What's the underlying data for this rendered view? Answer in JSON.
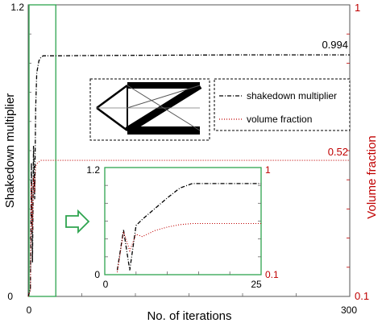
{
  "chart_data": [
    {
      "type": "line",
      "xlabel": "No. of iterations",
      "ylabel_left": "Shakedown multiplier",
      "ylabel_right": "Volume fraction",
      "xlim": [
        0,
        300
      ],
      "ylim_left": [
        0,
        1.2
      ],
      "ylim_right": [
        0.1,
        1
      ],
      "x_tick_labels": [
        "0",
        "300"
      ],
      "y_left_tick_labels": [
        "0",
        "1.2"
      ],
      "y_right_tick_labels": [
        "0.1",
        "1"
      ],
      "grid": false,
      "legend_position": "center",
      "series": [
        {
          "name": "shakedown multiplier",
          "axis": "left",
          "color": "#000000",
          "style": "dash-dot",
          "x": [
            0,
            2,
            3,
            4,
            5,
            6,
            7,
            8,
            10,
            12,
            14,
            16,
            20,
            25,
            30,
            50,
            100,
            150,
            200,
            250,
            300
          ],
          "y": [
            0,
            0.03,
            0.55,
            0.14,
            0.62,
            0.4,
            0.78,
            0.92,
            0.97,
            0.985,
            0.99,
            0.99,
            0.99,
            0.99,
            0.99,
            0.991,
            0.992,
            0.993,
            0.994,
            0.994,
            0.994
          ]
        },
        {
          "name": "volume fraction",
          "axis": "right",
          "color": "#c00000",
          "style": "dotted",
          "x": [
            0,
            2,
            3,
            4,
            5,
            6,
            7,
            8,
            10,
            12,
            16,
            20,
            30,
            50,
            100,
            150,
            200,
            250,
            300
          ],
          "y": [
            0.1,
            0.12,
            0.45,
            0.3,
            0.47,
            0.42,
            0.5,
            0.51,
            0.515,
            0.52,
            0.52,
            0.52,
            0.52,
            0.52,
            0.52,
            0.52,
            0.52,
            0.52,
            0.52
          ]
        }
      ],
      "annotations": [
        {
          "text": "0.994",
          "color": "#000000"
        },
        {
          "text": "0.52",
          "color": "#c00000"
        }
      ],
      "highlight_region": {
        "x": [
          0,
          25
        ],
        "color": "#2ea44f"
      }
    },
    {
      "type": "line",
      "inset": true,
      "xlim": [
        0,
        25
      ],
      "ylim_left": [
        0,
        1.2
      ],
      "ylim_right": [
        0.1,
        1
      ],
      "x_tick_labels": [
        "0",
        "25"
      ],
      "y_left_tick_labels": [
        "0",
        "1.2"
      ],
      "y_right_tick_labels": [
        "0.1",
        "1"
      ],
      "series": [
        {
          "name": "shakedown multiplier",
          "axis": "left",
          "color": "#000000",
          "style": "dash-dot",
          "x": [
            2,
            3,
            4,
            5,
            6,
            8,
            10,
            12,
            14,
            16,
            18,
            20,
            25
          ],
          "y": [
            0.05,
            0.5,
            0.05,
            0.55,
            0.62,
            0.74,
            0.86,
            0.97,
            1.02,
            1.02,
            1.02,
            1.02,
            1.02
          ]
        },
        {
          "name": "volume fraction",
          "axis": "right",
          "color": "#c00000",
          "style": "dotted",
          "x": [
            2,
            3,
            4,
            5,
            6,
            8,
            10,
            12,
            14,
            16,
            20,
            25
          ],
          "y": [
            0.12,
            0.46,
            0.3,
            0.44,
            0.42,
            0.47,
            0.5,
            0.52,
            0.53,
            0.53,
            0.53,
            0.53
          ]
        }
      ]
    }
  ],
  "colors": {
    "black_series": "#000000",
    "red_series": "#c00000",
    "green_marker": "#2ea44f",
    "right_axis": "#c00000"
  },
  "icons": [
    "right-arrow-icon",
    "truss-structure-icon"
  ]
}
